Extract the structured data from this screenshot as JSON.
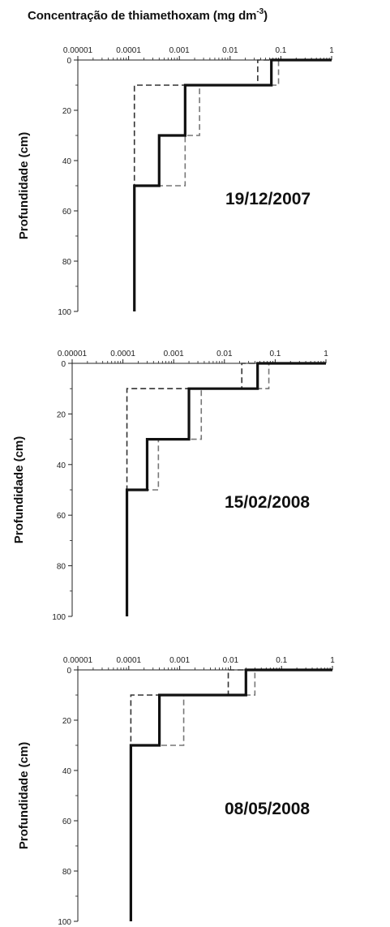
{
  "title": {
    "text": "Concentração de thiamethoxam (mg dm",
    "exponent": "-3",
    "close": ")"
  },
  "chart_data": [
    {
      "type": "line",
      "subtitle": "19/12/2007",
      "ylabel": "Profundidade (cm)",
      "x_scale": "log",
      "xlim": [
        1e-05,
        1
      ],
      "ylim": [
        0,
        100
      ],
      "y_inverted": true,
      "x_ticks": [
        "0.00001",
        "0.0001",
        "0.001",
        "0.01",
        "0.1",
        "1"
      ],
      "y_ticks": [
        "0",
        "20",
        "40",
        "60",
        "80",
        "100"
      ],
      "series": [
        {
          "style": "solid",
          "steps": [
            {
              "from": 0,
              "to": 10,
              "x": 0.065
            },
            {
              "from": 10,
              "to": 30,
              "x": 0.0013
            },
            {
              "from": 30,
              "to": 50,
              "x": 0.0004
            },
            {
              "from": 50,
              "to": 100,
              "x": 0.00013
            }
          ]
        },
        {
          "style": "dashed-low",
          "steps": [
            {
              "from": 0,
              "to": 10,
              "x": 0.035
            },
            {
              "from": 10,
              "to": 100,
              "x": 0.00013
            }
          ]
        },
        {
          "style": "dashed-high",
          "steps": [
            {
              "from": 0,
              "to": 10,
              "x": 0.09
            },
            {
              "from": 10,
              "to": 30,
              "x": 0.0025
            },
            {
              "from": 30,
              "to": 50,
              "x": 0.0013
            },
            {
              "from": 50,
              "to": 100,
              "x": 0.00013
            }
          ]
        }
      ]
    },
    {
      "type": "line",
      "subtitle": "15/02/2008",
      "ylabel": "Profundidade (cm)",
      "x_scale": "log",
      "xlim": [
        1e-05,
        1
      ],
      "ylim": [
        0,
        100
      ],
      "y_inverted": true,
      "x_ticks": [
        "0.00001",
        "0.0001",
        "0.001",
        "0.01",
        "0.1",
        "1"
      ],
      "y_ticks": [
        "0",
        "20",
        "40",
        "60",
        "80",
        "100"
      ],
      "series": [
        {
          "style": "solid",
          "steps": [
            {
              "from": 0,
              "to": 10,
              "x": 0.045
            },
            {
              "from": 10,
              "to": 30,
              "x": 0.002
            },
            {
              "from": 30,
              "to": 50,
              "x": 0.0003
            },
            {
              "from": 50,
              "to": 100,
              "x": 0.00012
            }
          ]
        },
        {
          "style": "dashed-low",
          "steps": [
            {
              "from": 0,
              "to": 10,
              "x": 0.022
            },
            {
              "from": 10,
              "to": 100,
              "x": 0.00012
            }
          ]
        },
        {
          "style": "dashed-high",
          "steps": [
            {
              "from": 0,
              "to": 10,
              "x": 0.075
            },
            {
              "from": 10,
              "to": 30,
              "x": 0.0035
            },
            {
              "from": 30,
              "to": 50,
              "x": 0.0005
            },
            {
              "from": 50,
              "to": 100,
              "x": 0.00012
            }
          ]
        }
      ]
    },
    {
      "type": "line",
      "subtitle": "08/05/2008",
      "ylabel": "Profundidade (cm)",
      "x_scale": "log",
      "xlim": [
        1e-05,
        1
      ],
      "ylim": [
        0,
        100
      ],
      "y_inverted": true,
      "x_ticks": [
        "0.00001",
        "0.0001",
        "0.001",
        "0.01",
        "0.1",
        "1"
      ],
      "y_ticks": [
        "0",
        "20",
        "40",
        "60",
        "80",
        "100"
      ],
      "series": [
        {
          "style": "solid",
          "steps": [
            {
              "from": 0,
              "to": 10,
              "x": 0.02
            },
            {
              "from": 10,
              "to": 30,
              "x": 0.0004
            },
            {
              "from": 30,
              "to": 100,
              "x": 0.00011
            }
          ]
        },
        {
          "style": "dashed-low",
          "steps": [
            {
              "from": 0,
              "to": 10,
              "x": 0.009
            },
            {
              "from": 10,
              "to": 100,
              "x": 0.00011
            }
          ]
        },
        {
          "style": "dashed-high",
          "steps": [
            {
              "from": 0,
              "to": 10,
              "x": 0.03
            },
            {
              "from": 10,
              "to": 30,
              "x": 0.0012
            },
            {
              "from": 30,
              "to": 100,
              "x": 0.00011
            }
          ]
        }
      ]
    }
  ],
  "colors": {
    "axis": "#222222",
    "solid_series": "#111111",
    "dashed_low": "#333333",
    "dashed_high": "#777777"
  }
}
